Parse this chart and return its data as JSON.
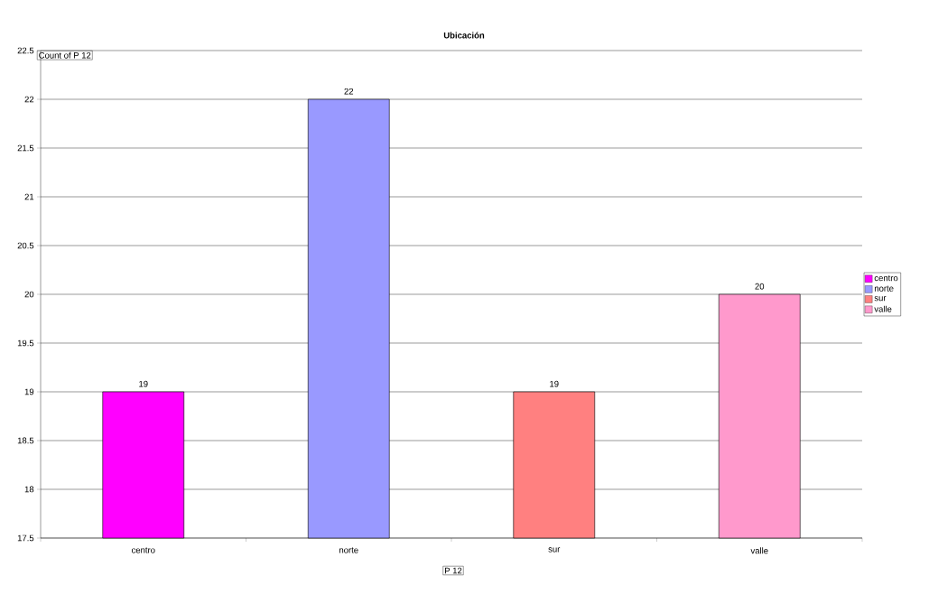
{
  "chart_data": {
    "type": "bar",
    "title": "Ubicación",
    "xlabel": "P 12",
    "ylabel": "Count of P 12",
    "categories": [
      "centro",
      "norte",
      "sur",
      "valle"
    ],
    "series": [
      {
        "name": "centro",
        "color": "#ff00ff",
        "values": [
          19,
          null,
          null,
          null
        ]
      },
      {
        "name": "norte",
        "color": "#9999ff",
        "values": [
          null,
          22,
          null,
          null
        ]
      },
      {
        "name": "sur",
        "color": "#ff8080",
        "values": [
          null,
          null,
          19,
          null
        ]
      },
      {
        "name": "valle",
        "color": "#ff99cc",
        "values": [
          null,
          null,
          null,
          20
        ]
      }
    ],
    "ylim": [
      17.5,
      22.5
    ],
    "yticks": [
      17.5,
      18,
      18.5,
      19,
      19.5,
      20,
      20.5,
      21,
      21.5,
      22,
      22.5
    ],
    "grid": "y",
    "legend": "right",
    "data_labels": true
  }
}
